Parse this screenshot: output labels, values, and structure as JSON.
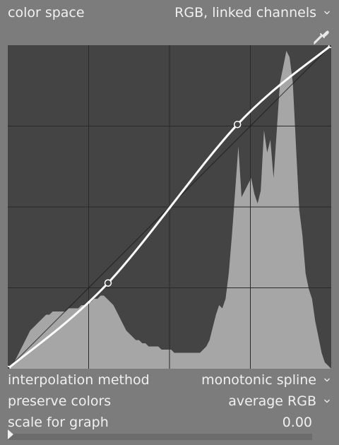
{
  "color_space": {
    "label": "color space",
    "value": "RGB, linked channels"
  },
  "interpolation": {
    "label": "interpolation method",
    "value": "monotonic spline"
  },
  "preserve": {
    "label": "preserve colors",
    "value": "average RGB"
  },
  "scale": {
    "label": "scale for graph",
    "value": "0.00",
    "fraction": 0.0
  },
  "curve": {
    "nodes": [
      [
        0,
        0
      ],
      [
        0.31,
        0.265
      ],
      [
        0.71,
        0.755
      ],
      [
        1,
        1
      ]
    ],
    "grid_divisions": 4
  },
  "histogram": [
    0.0,
    0.01,
    0.02,
    0.04,
    0.06,
    0.08,
    0.1,
    0.12,
    0.13,
    0.14,
    0.15,
    0.16,
    0.17,
    0.17,
    0.18,
    0.18,
    0.18,
    0.18,
    0.18,
    0.19,
    0.19,
    0.19,
    0.19,
    0.2,
    0.2,
    0.21,
    0.21,
    0.22,
    0.22,
    0.23,
    0.23,
    0.22,
    0.21,
    0.2,
    0.18,
    0.16,
    0.14,
    0.12,
    0.11,
    0.1,
    0.09,
    0.09,
    0.08,
    0.08,
    0.07,
    0.07,
    0.07,
    0.07,
    0.06,
    0.06,
    0.06,
    0.06,
    0.05,
    0.05,
    0.05,
    0.05,
    0.05,
    0.05,
    0.05,
    0.05,
    0.05,
    0.06,
    0.07,
    0.09,
    0.13,
    0.17,
    0.2,
    0.19,
    0.22,
    0.3,
    0.42,
    0.56,
    0.7,
    0.54,
    0.56,
    0.58,
    0.6,
    0.55,
    0.52,
    0.56,
    0.75,
    0.68,
    0.72,
    0.6,
    0.75,
    0.9,
    0.95,
    1.0,
    0.98,
    0.9,
    0.7,
    0.5,
    0.42,
    0.3,
    0.25,
    0.22,
    0.15,
    0.1,
    0.05,
    0.02,
    0.01,
    0.0
  ],
  "colors": {
    "background": "#7c7c7c",
    "graph_bg": "#444444",
    "histogram": "#a6a6a6",
    "curve": "#ffffff",
    "grid": "#2a2a2a",
    "text": "#f0f0f0"
  },
  "icons": {
    "picker": "color-picker-icon",
    "dropdown": "chevron-down-icon"
  }
}
